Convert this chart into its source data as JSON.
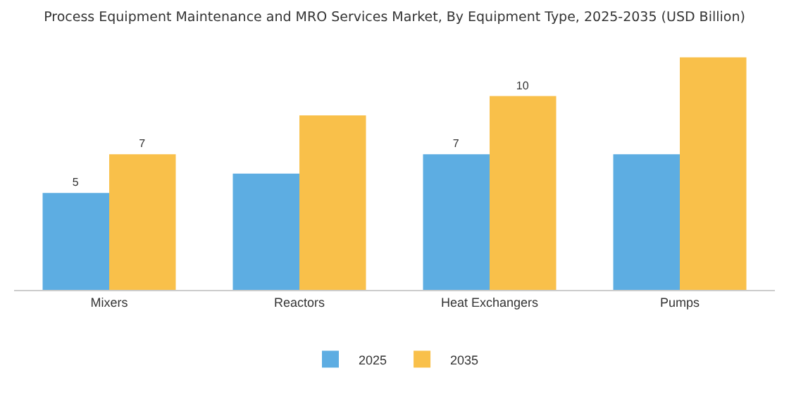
{
  "chart_data": {
    "type": "bar",
    "title": "Process Equipment Maintenance and MRO Services Market, By Equipment Type, 2025-2035 (USD Billion)",
    "categories": [
      "Mixers",
      "Reactors",
      "Heat Exchangers",
      "Pumps"
    ],
    "series": [
      {
        "name": "2025",
        "color": "#5dade2",
        "values": [
          5,
          6,
          7,
          7
        ],
        "value_labels": [
          "5",
          null,
          "7",
          null
        ]
      },
      {
        "name": "2035",
        "color": "#f9c04a",
        "values": [
          7,
          9,
          10,
          12
        ],
        "value_labels": [
          "7",
          null,
          "10",
          null
        ]
      }
    ],
    "legend": "bottom"
  }
}
